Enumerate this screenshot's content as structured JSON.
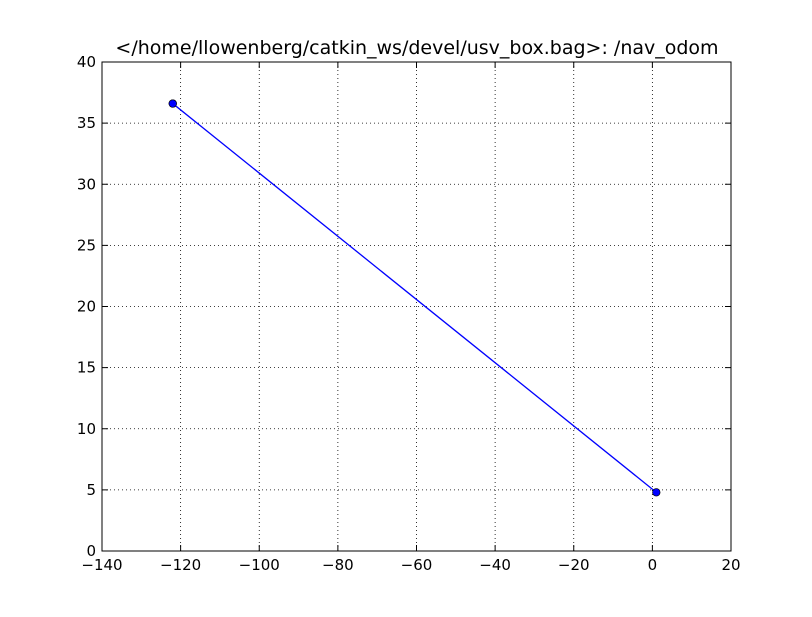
{
  "chart_data": {
    "type": "line",
    "title": "</home/llowenberg/catkin_ws/devel/usv_box.bag>: /nav_odom",
    "xlabel": "",
    "ylabel": "",
    "xlim": [
      -140,
      20
    ],
    "ylim": [
      0,
      40
    ],
    "x_ticks": [
      -140,
      -120,
      -100,
      -80,
      -60,
      -40,
      -20,
      0,
      20
    ],
    "y_ticks": [
      0,
      5,
      10,
      15,
      20,
      25,
      30,
      35,
      40
    ],
    "x_tick_labels": [
      "−140",
      "−120",
      "−100",
      "−80",
      "−60",
      "−40",
      "−20",
      "0",
      "20"
    ],
    "y_tick_labels": [
      "0",
      "5",
      "10",
      "15",
      "20",
      "25",
      "30",
      "35",
      "40"
    ],
    "grid": true,
    "series": [
      {
        "color": "#0000ff",
        "marker": "circle",
        "points": [
          {
            "x": -122.0,
            "y": 36.6
          },
          {
            "x": -122.0,
            "y": 36.6
          },
          {
            "x": 1.0,
            "y": 4.8
          }
        ]
      }
    ]
  }
}
